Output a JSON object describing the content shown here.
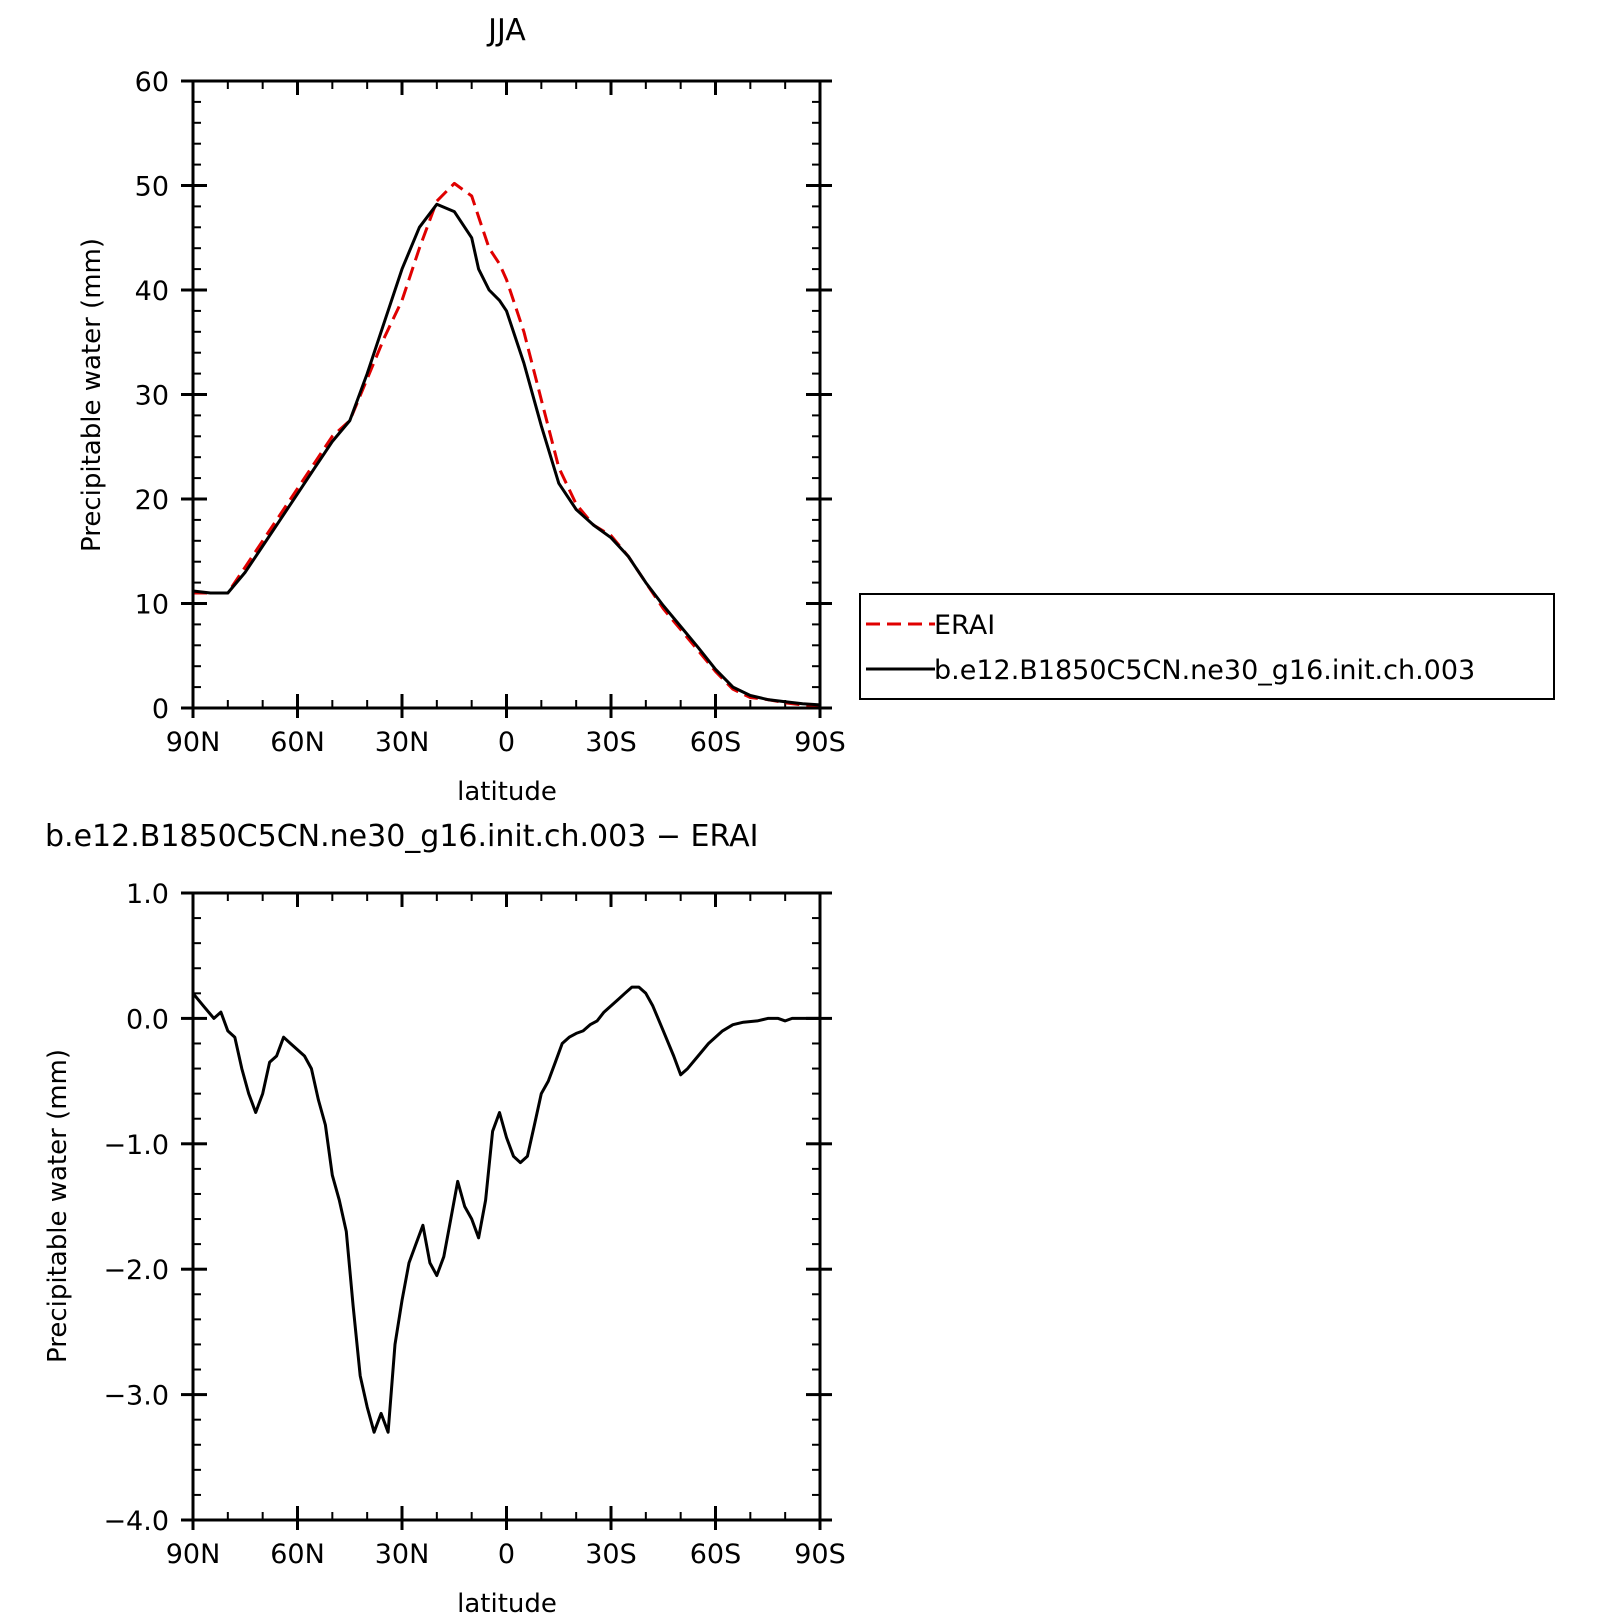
{
  "chart_data": [
    {
      "type": "line",
      "title": "JJA",
      "xlabel": "latitude",
      "ylabel": "Precipitable water (mm)",
      "xlim": [
        90,
        -90
      ],
      "ylim": [
        0,
        60
      ],
      "x_ticks": [
        90,
        60,
        30,
        0,
        -30,
        -60,
        -90
      ],
      "x_tick_labels": [
        "90N",
        "60N",
        "30N",
        "0",
        "30S",
        "60S",
        "90S"
      ],
      "y_ticks": [
        0,
        10,
        20,
        30,
        40,
        50,
        60
      ],
      "y_tick_labels": [
        "0",
        "10",
        "20",
        "30",
        "40",
        "50",
        "60"
      ],
      "legend_position": "right",
      "series": [
        {
          "name": "ERAI",
          "color": "#e00000",
          "dash": true,
          "x": [
            90,
            85,
            80,
            75,
            70,
            65,
            60,
            55,
            50,
            45,
            40,
            35,
            30,
            25,
            20,
            15,
            10,
            8,
            5,
            2,
            0,
            -5,
            -10,
            -15,
            -20,
            -25,
            -30,
            -35,
            -40,
            -45,
            -50,
            -55,
            -60,
            -65,
            -70,
            -75,
            -80,
            -85,
            -90
          ],
          "y": [
            11.0,
            11.0,
            11.0,
            13.5,
            16.0,
            18.5,
            21.0,
            23.5,
            26.0,
            27.5,
            31.5,
            35.5,
            39.0,
            44.0,
            48.5,
            50.2,
            49.0,
            47.0,
            44.0,
            42.5,
            41.0,
            36.0,
            29.5,
            23.0,
            19.5,
            17.5,
            16.5,
            14.5,
            12.0,
            9.5,
            7.5,
            5.5,
            3.5,
            1.8,
            1.0,
            0.8,
            0.5,
            0.3,
            0.2
          ]
        },
        {
          "name": "b.e12.B1850C5CN.ne30_g16.init.ch.003",
          "color": "#000000",
          "dash": false,
          "x": [
            90,
            85,
            80,
            75,
            70,
            65,
            60,
            55,
            50,
            45,
            40,
            35,
            30,
            25,
            20,
            15,
            10,
            8,
            5,
            2,
            0,
            -5,
            -10,
            -15,
            -20,
            -25,
            -30,
            -35,
            -40,
            -45,
            -50,
            -55,
            -60,
            -65,
            -70,
            -75,
            -80,
            -85,
            -90
          ],
          "y": [
            11.2,
            11.0,
            11.0,
            13.0,
            15.5,
            18.0,
            20.5,
            23.0,
            25.5,
            27.5,
            32.0,
            37.0,
            42.0,
            46.0,
            48.2,
            47.5,
            45.0,
            42.0,
            40.0,
            39.0,
            38.0,
            33.0,
            27.0,
            21.5,
            19.0,
            17.5,
            16.3,
            14.5,
            12.0,
            9.8,
            7.8,
            5.8,
            3.7,
            2.0,
            1.2,
            0.8,
            0.6,
            0.4,
            0.3
          ]
        }
      ]
    },
    {
      "type": "line",
      "title": "b.e12.B1850C5CN.ne30_g16.init.ch.003 − ERAI",
      "xlabel": "latitude",
      "ylabel": "Precipitable water (mm)",
      "xlim": [
        90,
        -90
      ],
      "ylim": [
        -4.0,
        1.0
      ],
      "x_ticks": [
        90,
        60,
        30,
        0,
        -30,
        -60,
        -90
      ],
      "x_tick_labels": [
        "90N",
        "60N",
        "30N",
        "0",
        "30S",
        "60S",
        "90S"
      ],
      "y_ticks": [
        1.0,
        0.0,
        -1.0,
        -2.0,
        -3.0,
        -4.0
      ],
      "y_tick_labels": [
        "1.0",
        "0.0",
        "−1.0",
        "−2.0",
        "−3.0",
        "−4.0"
      ],
      "series": [
        {
          "color": "#000000",
          "x": [
            90,
            87,
            84,
            82,
            80,
            78,
            76,
            74,
            72,
            70,
            68,
            66,
            64,
            62,
            60,
            58,
            56,
            54,
            52,
            50,
            48,
            46,
            44,
            42,
            40,
            38,
            36,
            34,
            32,
            30,
            28,
            26,
            24,
            22,
            20,
            18,
            16,
            14,
            12,
            10,
            8,
            6,
            4,
            2,
            0,
            -2,
            -4,
            -6,
            -8,
            -10,
            -12,
            -14,
            -16,
            -18,
            -20,
            -22,
            -24,
            -26,
            -28,
            -30,
            -32,
            -34,
            -36,
            -38,
            -40,
            -42,
            -45,
            -48,
            -50,
            -52,
            -55,
            -58,
            -62,
            -65,
            -68,
            -72,
            -75,
            -78,
            -80,
            -82,
            -84,
            -86,
            -88,
            -90
          ],
          "y": [
            0.2,
            0.1,
            0.0,
            0.05,
            -0.1,
            -0.15,
            -0.4,
            -0.6,
            -0.75,
            -0.6,
            -0.35,
            -0.3,
            -0.15,
            -0.2,
            -0.25,
            -0.3,
            -0.4,
            -0.65,
            -0.85,
            -1.25,
            -1.45,
            -1.7,
            -2.3,
            -2.85,
            -3.1,
            -3.3,
            -3.15,
            -3.3,
            -2.6,
            -2.25,
            -1.95,
            -1.8,
            -1.65,
            -1.95,
            -2.05,
            -1.9,
            -1.6,
            -1.3,
            -1.5,
            -1.6,
            -1.75,
            -1.45,
            -0.9,
            -0.75,
            -0.95,
            -1.1,
            -1.15,
            -1.1,
            -0.85,
            -0.6,
            -0.5,
            -0.35,
            -0.2,
            -0.15,
            -0.12,
            -0.1,
            -0.05,
            -0.02,
            0.05,
            0.1,
            0.15,
            0.2,
            0.25,
            0.25,
            0.2,
            0.1,
            -0.1,
            -0.3,
            -0.45,
            -0.4,
            -0.3,
            -0.2,
            -0.1,
            -0.05,
            -0.03,
            -0.02,
            0.0,
            0.0,
            -0.02,
            0.0,
            0.0,
            0.0,
            0.0,
            0.0
          ]
        }
      ]
    }
  ]
}
